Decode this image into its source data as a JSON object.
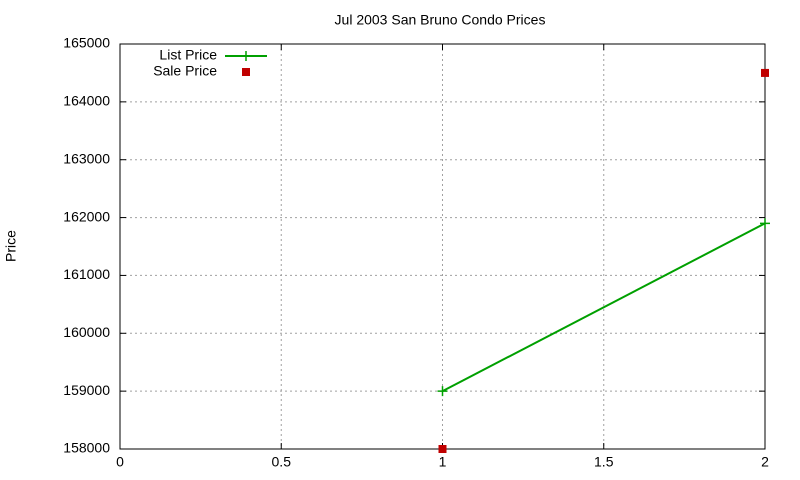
{
  "chart_data": {
    "type": "line",
    "title": "Jul 2003 San Bruno Condo Prices",
    "y_label": "Price",
    "x": [
      1,
      2
    ],
    "series": [
      {
        "name": "List Price",
        "color": "#00a000",
        "values": [
          159000,
          161900
        ],
        "line": true,
        "marker": "plus"
      },
      {
        "name": "Sale Price",
        "color": "#c00000",
        "values": [
          158000,
          164500
        ],
        "line": false,
        "marker": "square"
      }
    ],
    "xlim": [
      0,
      2
    ],
    "xticks": [
      0,
      0.5,
      1,
      1.5,
      2
    ],
    "ylim": [
      158000,
      165000
    ],
    "yticks": [
      158000,
      159000,
      160000,
      161000,
      162000,
      163000,
      164000,
      165000
    ],
    "grid": true,
    "legend": "top-left"
  }
}
